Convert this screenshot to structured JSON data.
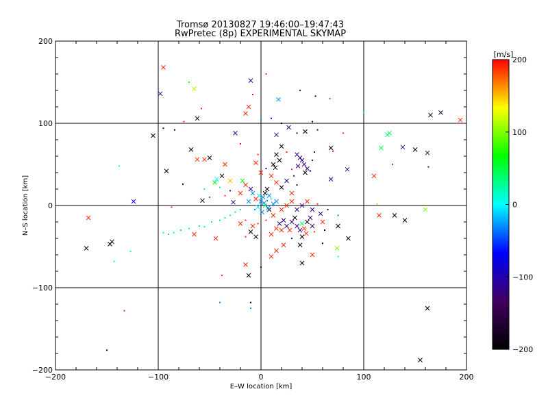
{
  "chart_data": {
    "type": "scatter",
    "title": "Tromsø 20130827 19:46:00–19:47:43",
    "subtitle": "RwPretec (8p) EXPERIMENTAL SKYMAP",
    "xlabel": "E–W location [km]",
    "ylabel": "N–S location [km]",
    "xlim": [
      -200,
      200
    ],
    "ylim": [
      -200,
      200
    ],
    "xticks": [
      "−200",
      "−100",
      "0",
      "100",
      "200"
    ],
    "yticks": [
      "−200",
      "−100",
      "0",
      "100",
      "200"
    ],
    "grid_lines_x": [
      -100,
      0,
      100
    ],
    "grid_lines_y": [
      -100,
      0,
      100
    ],
    "colorbar": {
      "label": "[m/s]",
      "range": [
        -200,
        200
      ],
      "ticks": [
        "200",
        "100",
        "0",
        "−100",
        "−200"
      ],
      "colormap": [
        "#000000",
        "#400060",
        "#0000ff",
        "#00ffff",
        "#00ff00",
        "#ffff00",
        "#ff0000"
      ]
    },
    "markers": {
      "cross": "larger echoes (x)",
      "dot": "small echoes (·)"
    },
    "points": [
      {
        "x": -95,
        "y": 168,
        "v": 190,
        "m": "x"
      },
      {
        "x": -98,
        "y": 136,
        "v": -120,
        "m": "x"
      },
      {
        "x": -70,
        "y": 150,
        "v": 80,
        "m": "d"
      },
      {
        "x": -65,
        "y": 142,
        "v": 110,
        "m": "x"
      },
      {
        "x": -58,
        "y": 118,
        "v": 190,
        "m": "d"
      },
      {
        "x": -62,
        "y": 106,
        "v": -200,
        "m": "x"
      },
      {
        "x": -75,
        "y": 102,
        "v": 190,
        "m": "d"
      },
      {
        "x": -84,
        "y": 92,
        "v": -200,
        "m": "d"
      },
      {
        "x": -95,
        "y": 94,
        "v": -200,
        "m": "d"
      },
      {
        "x": -105,
        "y": 85,
        "v": -200,
        "m": "x"
      },
      {
        "x": -68,
        "y": 68,
        "v": -200,
        "m": "x"
      },
      {
        "x": -62,
        "y": 56,
        "v": 190,
        "m": "x"
      },
      {
        "x": -55,
        "y": 56,
        "v": 190,
        "m": "x"
      },
      {
        "x": -50,
        "y": 58,
        "v": -200,
        "m": "x"
      },
      {
        "x": -92,
        "y": 42,
        "v": -200,
        "m": "x"
      },
      {
        "x": -138,
        "y": 48,
        "v": 30,
        "m": "d"
      },
      {
        "x": -124,
        "y": 5,
        "v": -70,
        "m": "x"
      },
      {
        "x": -168,
        "y": -15,
        "v": 190,
        "m": "x"
      },
      {
        "x": -170,
        "y": -52,
        "v": -200,
        "m": "x"
      },
      {
        "x": -145,
        "y": -44,
        "v": -200,
        "m": "x"
      },
      {
        "x": -147,
        "y": -47,
        "v": -200,
        "m": "x"
      },
      {
        "x": -143,
        "y": -68,
        "v": 30,
        "m": "d"
      },
      {
        "x": -127,
        "y": -56,
        "v": 30,
        "m": "d"
      },
      {
        "x": -133,
        "y": -128,
        "v": 190,
        "m": "d"
      },
      {
        "x": -150,
        "y": -176,
        "v": -120,
        "m": "d"
      },
      {
        "x": -95,
        "y": -33,
        "v": 40,
        "m": "d"
      },
      {
        "x": -90,
        "y": -35,
        "v": 40,
        "m": "d"
      },
      {
        "x": -85,
        "y": -33,
        "v": 40,
        "m": "d"
      },
      {
        "x": -78,
        "y": -30,
        "v": 40,
        "m": "d"
      },
      {
        "x": -70,
        "y": -28,
        "v": 40,
        "m": "d"
      },
      {
        "x": -65,
        "y": -35,
        "v": 190,
        "m": "x"
      },
      {
        "x": -60,
        "y": -25,
        "v": 40,
        "m": "d"
      },
      {
        "x": -55,
        "y": -26,
        "v": 40,
        "m": "d"
      },
      {
        "x": -48,
        "y": -20,
        "v": 40,
        "m": "d"
      },
      {
        "x": -44,
        "y": -40,
        "v": 190,
        "m": "x"
      },
      {
        "x": -40,
        "y": -18,
        "v": 40,
        "m": "d"
      },
      {
        "x": -35,
        "y": -15,
        "v": 40,
        "m": "d"
      },
      {
        "x": -30,
        "y": -12,
        "v": 40,
        "m": "d"
      },
      {
        "x": -25,
        "y": -8,
        "v": 40,
        "m": "d"
      },
      {
        "x": -20,
        "y": -5,
        "v": 40,
        "m": "d"
      },
      {
        "x": -87,
        "y": -2,
        "v": 190,
        "m": "d"
      },
      {
        "x": -76,
        "y": 26,
        "v": -200,
        "m": "d"
      },
      {
        "x": -57,
        "y": 6,
        "v": -200,
        "m": "x"
      },
      {
        "x": -45,
        "y": 28,
        "v": 60,
        "m": "x"
      },
      {
        "x": -43,
        "y": 32,
        "v": 0,
        "m": "x"
      },
      {
        "x": -38,
        "y": 36,
        "v": -200,
        "m": "x"
      },
      {
        "x": -30,
        "y": 30,
        "v": 150,
        "m": "x"
      },
      {
        "x": -35,
        "y": 50,
        "v": 190,
        "m": "x"
      },
      {
        "x": -27,
        "y": 4,
        "v": -120,
        "m": "x"
      },
      {
        "x": -25,
        "y": 88,
        "v": -120,
        "m": "x"
      },
      {
        "x": -20,
        "y": 75,
        "v": 190,
        "m": "d"
      },
      {
        "x": -15,
        "y": 112,
        "v": 190,
        "m": "x"
      },
      {
        "x": -12,
        "y": 120,
        "v": 190,
        "m": "x"
      },
      {
        "x": -10,
        "y": 152,
        "v": -120,
        "m": "x"
      },
      {
        "x": -8,
        "y": 135,
        "v": 190,
        "m": "d"
      },
      {
        "x": 5,
        "y": 160,
        "v": 190,
        "m": "d"
      },
      {
        "x": 17,
        "y": 129,
        "v": -30,
        "m": "x"
      },
      {
        "x": 38,
        "y": 140,
        "v": -120,
        "m": "d"
      },
      {
        "x": 53,
        "y": 133,
        "v": -200,
        "m": "d"
      },
      {
        "x": 67,
        "y": 130,
        "v": -30,
        "m": "d"
      },
      {
        "x": 10,
        "y": 106,
        "v": -70,
        "m": "d"
      },
      {
        "x": 0,
        "y": 104,
        "v": -30,
        "m": "d"
      },
      {
        "x": 20,
        "y": 100,
        "v": -200,
        "m": "d"
      },
      {
        "x": 27,
        "y": 95,
        "v": -120,
        "m": "x"
      },
      {
        "x": 15,
        "y": 86,
        "v": -120,
        "m": "x"
      },
      {
        "x": 35,
        "y": 88,
        "v": -120,
        "m": "d"
      },
      {
        "x": 43,
        "y": 90,
        "v": -200,
        "m": "x"
      },
      {
        "x": 50,
        "y": 102,
        "v": -200,
        "m": "d"
      },
      {
        "x": 55,
        "y": 92,
        "v": -120,
        "m": "d"
      },
      {
        "x": 80,
        "y": 88,
        "v": 190,
        "m": "d"
      },
      {
        "x": 100,
        "y": 113,
        "v": 40,
        "m": "d"
      },
      {
        "x": 20,
        "y": 72,
        "v": -200,
        "m": "x"
      },
      {
        "x": 15,
        "y": 62,
        "v": -200,
        "m": "x"
      },
      {
        "x": 18,
        "y": 55,
        "v": -200,
        "m": "x"
      },
      {
        "x": 12,
        "y": 50,
        "v": -200,
        "m": "x"
      },
      {
        "x": 14,
        "y": 46,
        "v": -200,
        "m": "x"
      },
      {
        "x": 25,
        "y": 65,
        "v": 190,
        "m": "d"
      },
      {
        "x": 35,
        "y": 62,
        "v": -120,
        "m": "x"
      },
      {
        "x": 38,
        "y": 58,
        "v": -120,
        "m": "x"
      },
      {
        "x": 40,
        "y": 55,
        "v": -120,
        "m": "x"
      },
      {
        "x": 42,
        "y": 50,
        "v": -120,
        "m": "x"
      },
      {
        "x": 36,
        "y": 48,
        "v": -120,
        "m": "x"
      },
      {
        "x": 45,
        "y": 45,
        "v": -120,
        "m": "x"
      },
      {
        "x": 43,
        "y": 40,
        "v": -200,
        "m": "x"
      },
      {
        "x": 48,
        "y": 42,
        "v": -120,
        "m": "d"
      },
      {
        "x": 30,
        "y": 44,
        "v": 190,
        "m": "d"
      },
      {
        "x": 32,
        "y": 36,
        "v": -120,
        "m": "d"
      },
      {
        "x": 50,
        "y": 55,
        "v": -120,
        "m": "d"
      },
      {
        "x": 52,
        "y": 65,
        "v": -120,
        "m": "d"
      },
      {
        "x": 68,
        "y": 70,
        "v": -200,
        "m": "x"
      },
      {
        "x": 70,
        "y": 66,
        "v": 190,
        "m": "d"
      },
      {
        "x": 68,
        "y": 32,
        "v": -120,
        "m": "x"
      },
      {
        "x": 84,
        "y": 44,
        "v": -120,
        "m": "x"
      },
      {
        "x": 110,
        "y": 36,
        "v": 190,
        "m": "x"
      },
      {
        "x": 117,
        "y": 70,
        "v": 40,
        "m": "x"
      },
      {
        "x": 123,
        "y": 86,
        "v": 40,
        "m": "x"
      },
      {
        "x": 125,
        "y": 88,
        "v": 40,
        "m": "x"
      },
      {
        "x": 128,
        "y": 50,
        "v": 190,
        "m": "d"
      },
      {
        "x": 138,
        "y": 71,
        "v": -120,
        "m": "x"
      },
      {
        "x": 150,
        "y": 68,
        "v": -200,
        "m": "x"
      },
      {
        "x": 162,
        "y": 64,
        "v": -120,
        "m": "x"
      },
      {
        "x": 163,
        "y": 47,
        "v": -120,
        "m": "d"
      },
      {
        "x": 165,
        "y": 110,
        "v": -160,
        "m": "x"
      },
      {
        "x": 175,
        "y": 113,
        "v": -160,
        "m": "x"
      },
      {
        "x": 194,
        "y": 104,
        "v": 190,
        "m": "x"
      },
      {
        "x": 113,
        "y": 2,
        "v": 100,
        "m": "d"
      },
      {
        "x": 115,
        "y": -12,
        "v": 190,
        "m": "x"
      },
      {
        "x": 130,
        "y": -12,
        "v": -200,
        "m": "x"
      },
      {
        "x": 140,
        "y": -18,
        "v": -200,
        "m": "x"
      },
      {
        "x": 160,
        "y": -5,
        "v": 100,
        "m": "x"
      },
      {
        "x": 162,
        "y": -125,
        "v": -200,
        "m": "x"
      },
      {
        "x": 155,
        "y": -188,
        "v": -200,
        "m": "x"
      },
      {
        "x": 75,
        "y": -12,
        "v": -30,
        "m": "d"
      },
      {
        "x": 75,
        "y": -25,
        "v": -200,
        "m": "x"
      },
      {
        "x": 85,
        "y": -40,
        "v": -200,
        "m": "x"
      },
      {
        "x": 74,
        "y": -52,
        "v": 100,
        "m": "x"
      },
      {
        "x": 75,
        "y": -62,
        "v": 40,
        "m": "d"
      },
      {
        "x": 60,
        "y": -46,
        "v": -200,
        "m": "d"
      },
      {
        "x": 50,
        "y": -60,
        "v": 190,
        "m": "x"
      },
      {
        "x": 40,
        "y": -70,
        "v": -200,
        "m": "x"
      },
      {
        "x": 38,
        "y": -48,
        "v": -200,
        "m": "x"
      },
      {
        "x": 22,
        "y": -48,
        "v": 190,
        "m": "x"
      },
      {
        "x": 15,
        "y": -55,
        "v": 190,
        "m": "x"
      },
      {
        "x": 10,
        "y": -62,
        "v": 190,
        "m": "x"
      },
      {
        "x": 0,
        "y": -75,
        "v": -120,
        "m": "d"
      },
      {
        "x": -15,
        "y": -72,
        "v": 190,
        "m": "x"
      },
      {
        "x": -12,
        "y": -85,
        "v": -200,
        "m": "x"
      },
      {
        "x": -38,
        "y": -85,
        "v": 190,
        "m": "d"
      },
      {
        "x": -40,
        "y": -118,
        "v": -30,
        "m": "d"
      },
      {
        "x": -10,
        "y": -118,
        "v": -200,
        "m": "d"
      },
      {
        "x": -10,
        "y": -125,
        "v": -30,
        "m": "d"
      },
      {
        "x": -5,
        "y": -38,
        "v": -200,
        "m": "x"
      },
      {
        "x": -10,
        "y": -32,
        "v": -200,
        "m": "x"
      },
      {
        "x": -15,
        "y": -38,
        "v": 190,
        "m": "d"
      },
      {
        "x": -20,
        "y": -22,
        "v": 190,
        "m": "x"
      },
      {
        "x": -15,
        "y": -18,
        "v": 190,
        "m": "d"
      },
      {
        "x": -8,
        "y": -25,
        "v": 190,
        "m": "x"
      },
      {
        "x": -3,
        "y": -22,
        "v": 190,
        "m": "d"
      },
      {
        "x": 5,
        "y": -18,
        "v": 190,
        "m": "d"
      },
      {
        "x": 10,
        "y": -35,
        "v": 190,
        "m": "x"
      },
      {
        "x": 15,
        "y": -28,
        "v": 190,
        "m": "x"
      },
      {
        "x": 18,
        "y": -22,
        "v": -120,
        "m": "x"
      },
      {
        "x": 22,
        "y": -18,
        "v": -120,
        "m": "x"
      },
      {
        "x": 25,
        "y": -25,
        "v": -120,
        "m": "x"
      },
      {
        "x": 28,
        "y": -30,
        "v": 190,
        "m": "x"
      },
      {
        "x": 30,
        "y": -20,
        "v": -120,
        "m": "x"
      },
      {
        "x": 33,
        "y": -15,
        "v": -200,
        "m": "x"
      },
      {
        "x": 35,
        "y": -25,
        "v": -120,
        "m": "x"
      },
      {
        "x": 38,
        "y": -30,
        "v": -120,
        "m": "x"
      },
      {
        "x": 40,
        "y": -22,
        "v": 40,
        "m": "x"
      },
      {
        "x": 42,
        "y": -28,
        "v": 190,
        "m": "x"
      },
      {
        "x": 45,
        "y": -20,
        "v": -200,
        "m": "x"
      },
      {
        "x": 48,
        "y": -15,
        "v": -120,
        "m": "x"
      },
      {
        "x": 50,
        "y": -25,
        "v": -120,
        "m": "x"
      },
      {
        "x": 52,
        "y": -32,
        "v": 190,
        "m": "d"
      },
      {
        "x": 44,
        "y": -34,
        "v": 190,
        "m": "x"
      },
      {
        "x": 40,
        "y": -38,
        "v": -200,
        "m": "x"
      },
      {
        "x": 30,
        "y": -40,
        "v": -120,
        "m": "d"
      },
      {
        "x": 20,
        "y": -30,
        "v": 190,
        "m": "x"
      },
      {
        "x": 12,
        "y": -12,
        "v": 190,
        "m": "x"
      },
      {
        "x": 8,
        "y": -5,
        "v": -200,
        "m": "x"
      },
      {
        "x": 20,
        "y": -5,
        "v": 190,
        "m": "x"
      },
      {
        "x": 25,
        "y": 0,
        "v": 190,
        "m": "x"
      },
      {
        "x": 30,
        "y": 5,
        "v": 190,
        "m": "x"
      },
      {
        "x": 35,
        "y": -5,
        "v": -120,
        "m": "x"
      },
      {
        "x": 40,
        "y": 0,
        "v": -120,
        "m": "x"
      },
      {
        "x": 45,
        "y": 5,
        "v": 190,
        "m": "x"
      },
      {
        "x": 50,
        "y": -5,
        "v": -120,
        "m": "x"
      },
      {
        "x": 55,
        "y": 2,
        "v": 190,
        "m": "d"
      },
      {
        "x": 58,
        "y": -10,
        "v": -120,
        "m": "x"
      },
      {
        "x": 60,
        "y": -20,
        "v": 190,
        "m": "x"
      },
      {
        "x": 62,
        "y": -30,
        "v": -200,
        "m": "d"
      },
      {
        "x": 65,
        "y": -5,
        "v": -120,
        "m": "d"
      },
      {
        "x": 0,
        "y": 5,
        "v": -30,
        "m": "x"
      },
      {
        "x": 2,
        "y": 10,
        "v": -30,
        "m": "x"
      },
      {
        "x": 4,
        "y": 15,
        "v": -200,
        "m": "x"
      },
      {
        "x": 6,
        "y": 20,
        "v": -200,
        "m": "x"
      },
      {
        "x": 8,
        "y": 12,
        "v": -30,
        "m": "x"
      },
      {
        "x": -2,
        "y": 12,
        "v": 0,
        "m": "x"
      },
      {
        "x": -5,
        "y": 8,
        "v": 190,
        "m": "x"
      },
      {
        "x": -8,
        "y": 15,
        "v": -30,
        "m": "x"
      },
      {
        "x": -10,
        "y": 20,
        "v": -120,
        "m": "x"
      },
      {
        "x": -12,
        "y": 5,
        "v": -30,
        "m": "x"
      },
      {
        "x": -15,
        "y": 25,
        "v": 190,
        "m": "x"
      },
      {
        "x": -18,
        "y": 30,
        "v": 60,
        "m": "x"
      },
      {
        "x": -20,
        "y": 15,
        "v": 190,
        "m": "x"
      },
      {
        "x": 3,
        "y": 3,
        "v": -30,
        "m": "x"
      },
      {
        "x": 6,
        "y": 6,
        "v": -30,
        "m": "d"
      },
      {
        "x": 10,
        "y": 8,
        "v": 0,
        "m": "d"
      },
      {
        "x": 12,
        "y": 2,
        "v": -30,
        "m": "x"
      },
      {
        "x": 15,
        "y": 5,
        "v": -30,
        "m": "x"
      },
      {
        "x": -3,
        "y": -2,
        "v": 0,
        "m": "x"
      },
      {
        "x": -6,
        "y": -5,
        "v": -30,
        "m": "d"
      },
      {
        "x": 1,
        "y": -8,
        "v": -30,
        "m": "x"
      },
      {
        "x": 4,
        "y": 0,
        "v": 40,
        "m": "x"
      },
      {
        "x": 7,
        "y": -3,
        "v": -30,
        "m": "x"
      },
      {
        "x": 0,
        "y": 40,
        "v": 190,
        "m": "x"
      },
      {
        "x": -5,
        "y": 52,
        "v": 190,
        "m": "x"
      },
      {
        "x": 5,
        "y": 45,
        "v": -120,
        "m": "d"
      },
      {
        "x": -3,
        "y": 62,
        "v": 190,
        "m": "d"
      },
      {
        "x": 10,
        "y": 36,
        "v": 190,
        "m": "x"
      },
      {
        "x": 15,
        "y": 28,
        "v": 190,
        "m": "x"
      },
      {
        "x": 20,
        "y": 22,
        "v": -200,
        "m": "x"
      },
      {
        "x": 25,
        "y": 30,
        "v": -120,
        "m": "x"
      },
      {
        "x": 30,
        "y": 15,
        "v": 190,
        "m": "x"
      },
      {
        "x": 35,
        "y": 25,
        "v": -120,
        "m": "d"
      },
      {
        "x": -30,
        "y": 18,
        "v": -120,
        "m": "d"
      },
      {
        "x": -35,
        "y": 12,
        "v": 190,
        "m": "d"
      },
      {
        "x": -40,
        "y": 22,
        "v": 30,
        "m": "d"
      },
      {
        "x": -50,
        "y": 10,
        "v": 190,
        "m": "d"
      },
      {
        "x": -55,
        "y": 20,
        "v": 30,
        "m": "d"
      }
    ]
  }
}
